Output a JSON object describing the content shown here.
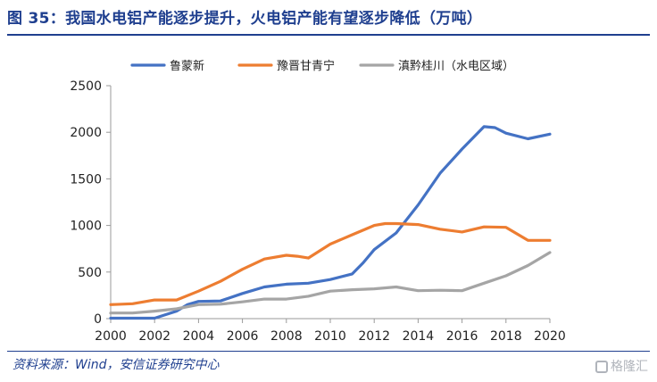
{
  "header": {
    "title": "图 35：我国水电铝产能逐步提升，火电铝产能有望逐步降低（万吨）"
  },
  "footer": {
    "source": "资料来源：Wind，安信证券研究中心",
    "watermark": "格隆汇"
  },
  "chart_data": {
    "type": "line",
    "title": "图 35：我国水电铝产能逐步提升，火电铝产能有望逐步降低（万吨）",
    "xlabel": "",
    "ylabel": "",
    "xlim": [
      2000,
      2020
    ],
    "ylim": [
      0,
      2500
    ],
    "xticks": [
      2000,
      2002,
      2004,
      2006,
      2008,
      2010,
      2012,
      2014,
      2016,
      2018,
      2020
    ],
    "yticks": [
      0,
      500,
      1000,
      1500,
      2000,
      2500
    ],
    "grid": false,
    "legend_position": "top",
    "series": [
      {
        "name": "鲁蒙新",
        "color": "#4472c4",
        "x": [
          2000,
          2001,
          2002,
          2003,
          2003.5,
          2004,
          2005,
          2006,
          2007,
          2008,
          2009,
          2010,
          2011,
          2011.5,
          2012,
          2013,
          2014,
          2015,
          2016,
          2017,
          2017.5,
          2018,
          2019,
          2020
        ],
        "y": [
          5,
          5,
          5,
          80,
          150,
          185,
          190,
          270,
          340,
          370,
          380,
          420,
          480,
          600,
          740,
          920,
          1220,
          1560,
          1820,
          2060,
          2050,
          1990,
          1930,
          1980
        ]
      },
      {
        "name": "豫晋甘青宁",
        "color": "#ed7d31",
        "x": [
          2000,
          2001,
          2002,
          2003,
          2004,
          2005,
          2006,
          2007,
          2008,
          2008.5,
          2009,
          2010,
          2011,
          2012,
          2012.5,
          2013,
          2014,
          2015,
          2016,
          2017,
          2018,
          2019,
          2020
        ],
        "y": [
          150,
          160,
          200,
          200,
          295,
          400,
          530,
          640,
          680,
          670,
          650,
          800,
          900,
          1000,
          1020,
          1020,
          1010,
          960,
          930,
          985,
          980,
          840,
          840
        ]
      },
      {
        "name": "滇黔桂川（水电区域）",
        "color": "#a5a5a5",
        "x": [
          2000,
          2001,
          2002,
          2003,
          2004,
          2005,
          2006,
          2007,
          2008,
          2009,
          2010,
          2011,
          2012,
          2013,
          2014,
          2015,
          2016,
          2017,
          2018,
          2019,
          2020
        ],
        "y": [
          60,
          60,
          80,
          105,
          150,
          155,
          180,
          210,
          210,
          240,
          295,
          310,
          320,
          340,
          300,
          305,
          300,
          380,
          460,
          570,
          710
        ]
      }
    ]
  }
}
